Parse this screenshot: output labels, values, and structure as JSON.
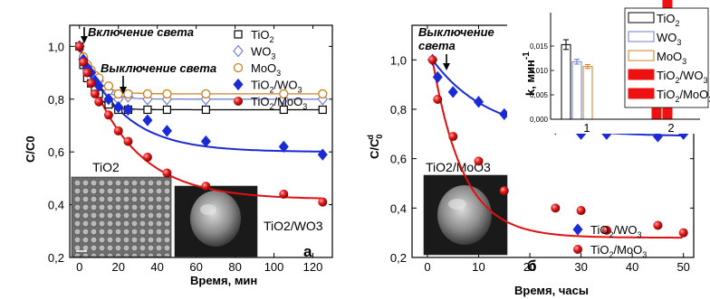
{
  "chart_data": [
    {
      "panel_label": "а",
      "type": "scatter",
      "xlabel": "Время, мин",
      "ylabel": "C/C0",
      "xlim": [
        -5,
        130
      ],
      "ylim": [
        0.2,
        1.08
      ],
      "xticks": [
        0,
        20,
        40,
        60,
        80,
        100,
        120
      ],
      "yticks": [
        0.2,
        0.4,
        0.6,
        0.8,
        1.0
      ],
      "ytick_labels": [
        "0,2",
        "0,4",
        "0,6",
        "0,8",
        "1,0"
      ],
      "annotations": [
        "Включение света",
        "Выключение света"
      ],
      "image_labels": [
        "TiO2",
        "TiO2/WO3"
      ],
      "legend_position": "top-right",
      "series": [
        {
          "name": "TiO2",
          "marker": "open-square",
          "color": "#000000",
          "x": [
            0,
            2,
            4,
            6,
            8,
            10,
            15,
            20,
            25,
            35,
            45,
            65,
            105,
            125
          ],
          "y": [
            1.0,
            0.93,
            0.88,
            0.86,
            0.84,
            0.82,
            0.78,
            0.76,
            0.76,
            0.76,
            0.76,
            0.76,
            0.76,
            0.76
          ],
          "fit": [
            0.76,
            0.24,
            6
          ]
        },
        {
          "name": "WO3",
          "marker": "open-diamond",
          "color": "#7080d0",
          "x": [
            0,
            2,
            4,
            6,
            8,
            10,
            15,
            20,
            25,
            35,
            45,
            65,
            105,
            125
          ],
          "y": [
            1.0,
            0.95,
            0.91,
            0.9,
            0.88,
            0.87,
            0.83,
            0.8,
            0.81,
            0.8,
            0.8,
            0.8,
            0.8,
            0.8
          ],
          "fit": [
            0.8,
            0.2,
            7
          ]
        },
        {
          "name": "MoO3",
          "marker": "open-circle",
          "color": "#d08020",
          "x": [
            0,
            2,
            4,
            6,
            8,
            10,
            15,
            20,
            25,
            35,
            45,
            65,
            105,
            125
          ],
          "y": [
            1.0,
            0.96,
            0.93,
            0.91,
            0.89,
            0.88,
            0.85,
            0.82,
            0.82,
            0.82,
            0.82,
            0.82,
            0.82,
            0.82
          ],
          "fit": [
            0.82,
            0.18,
            7
          ]
        },
        {
          "name": "TiO2/WO3",
          "marker": "filled-diamond",
          "color": "#1a2bd6",
          "x": [
            0,
            2,
            4,
            6,
            8,
            10,
            15,
            20,
            25,
            35,
            45,
            65,
            105,
            125
          ],
          "y": [
            1.0,
            0.95,
            0.92,
            0.9,
            0.87,
            0.85,
            0.8,
            0.77,
            0.76,
            0.72,
            0.68,
            0.64,
            0.62,
            0.59
          ],
          "fit": [
            0.6,
            0.4,
            22
          ]
        },
        {
          "name": "TiO2/MoO3",
          "marker": "filled-circle",
          "color": "#e01010",
          "x": [
            0,
            2,
            4,
            6,
            8,
            10,
            15,
            20,
            25,
            35,
            45,
            65,
            105,
            125
          ],
          "y": [
            1.0,
            0.94,
            0.9,
            0.86,
            0.82,
            0.79,
            0.74,
            0.68,
            0.64,
            0.58,
            0.52,
            0.47,
            0.44,
            0.41
          ],
          "fit": [
            0.42,
            0.58,
            25
          ]
        }
      ]
    },
    {
      "panel_label": "б",
      "type": "scatter",
      "xlabel": "Время, часы",
      "ylabel": "C/C0d",
      "xlim": [
        -3,
        52
      ],
      "ylim": [
        0.2,
        1.14
      ],
      "xticks": [
        0,
        10,
        20,
        30,
        40,
        50
      ],
      "yticks": [
        0.2,
        0.4,
        0.6,
        0.8,
        1.0
      ],
      "ytick_labels": [
        "0,2",
        "0,4",
        "0,6",
        "0,8",
        "1,0"
      ],
      "annotations": [
        "Выключение света"
      ],
      "image_labels": [
        "TiO2/MoO3"
      ],
      "legend_position": "right",
      "series": [
        {
          "name": "TiO2/WO3",
          "marker": "filled-diamond",
          "color": "#1a2bd6",
          "x": [
            1,
            2,
            5,
            10,
            15,
            25,
            30,
            35,
            45,
            50
          ],
          "y": [
            1.0,
            0.93,
            0.87,
            0.83,
            0.78,
            0.72,
            0.7,
            0.7,
            0.69,
            0.7
          ],
          "fit": [
            0.69,
            0.31,
            11
          ]
        },
        {
          "name": "TiO2/MoO3",
          "marker": "filled-circle",
          "color": "#e01010",
          "x": [
            1,
            2,
            5,
            10,
            15,
            25,
            30,
            35,
            45,
            50
          ],
          "y": [
            1.0,
            0.84,
            0.69,
            0.59,
            0.47,
            0.4,
            0.39,
            0.31,
            0.33,
            0.3
          ],
          "fit": [
            0.28,
            0.72,
            6
          ]
        }
      ]
    },
    {
      "type": "bar",
      "inset_of": "б",
      "ylabel": "k, мин-1",
      "ylim": [
        0,
        0.02
      ],
      "yticks": [
        0.0,
        0.005,
        0.01,
        0.015
      ],
      "ytick_labels": [
        "0,000",
        "0,005",
        "0,010",
        "0,015"
      ],
      "group_labels": [
        "1",
        "2"
      ],
      "legend_position": "right",
      "series": [
        {
          "name": "TiO2",
          "group": 0,
          "value": 0.0153,
          "err": 0.001,
          "fill": "#ffffff",
          "stroke": "#000000"
        },
        {
          "name": "WO3",
          "group": 0,
          "value": 0.0118,
          "err": 0.0005,
          "fill": "#ffffff",
          "stroke": "#6c7fd0"
        },
        {
          "name": "MoO3",
          "group": 0,
          "value": 0.0108,
          "err": 0.0004,
          "fill": "#ffffff",
          "stroke": "#d08020"
        },
        {
          "name": "TiO2/WO3",
          "group": 1,
          "value": 0.019,
          "err": 0.0003,
          "fill": "#ee1111",
          "stroke": "#ee1111"
        },
        {
          "name": "TiO2/MoO3",
          "group": 1,
          "value": 0.029,
          "err": 0,
          "fill": "#ee1111",
          "stroke": "#ee1111"
        }
      ]
    }
  ]
}
